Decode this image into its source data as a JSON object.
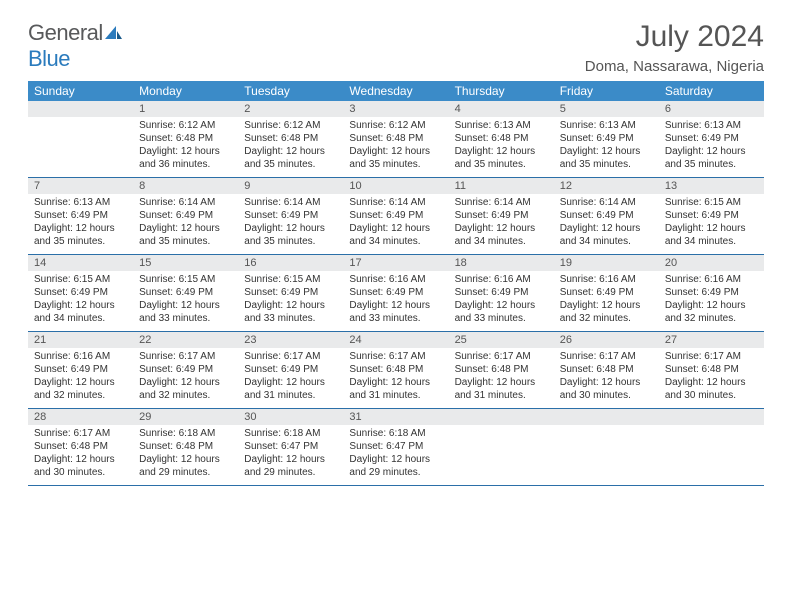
{
  "logo": {
    "text1": "General",
    "text2": "Blue"
  },
  "title": "July 2024",
  "location": "Doma, Nassarawa, Nigeria",
  "header_color": "#3b8bc8",
  "divider_color": "#2b6fa8",
  "daynum_bg": "#e9eaeb",
  "weekdays": [
    "Sunday",
    "Monday",
    "Tuesday",
    "Wednesday",
    "Thursday",
    "Friday",
    "Saturday"
  ],
  "weeks": [
    [
      {
        "num": "",
        "sunrise": "",
        "sunset": "",
        "daylight": ""
      },
      {
        "num": "1",
        "sunrise": "6:12 AM",
        "sunset": "6:48 PM",
        "daylight": "12 hours and 36 minutes."
      },
      {
        "num": "2",
        "sunrise": "6:12 AM",
        "sunset": "6:48 PM",
        "daylight": "12 hours and 35 minutes."
      },
      {
        "num": "3",
        "sunrise": "6:12 AM",
        "sunset": "6:48 PM",
        "daylight": "12 hours and 35 minutes."
      },
      {
        "num": "4",
        "sunrise": "6:13 AM",
        "sunset": "6:48 PM",
        "daylight": "12 hours and 35 minutes."
      },
      {
        "num": "5",
        "sunrise": "6:13 AM",
        "sunset": "6:49 PM",
        "daylight": "12 hours and 35 minutes."
      },
      {
        "num": "6",
        "sunrise": "6:13 AM",
        "sunset": "6:49 PM",
        "daylight": "12 hours and 35 minutes."
      }
    ],
    [
      {
        "num": "7",
        "sunrise": "6:13 AM",
        "sunset": "6:49 PM",
        "daylight": "12 hours and 35 minutes."
      },
      {
        "num": "8",
        "sunrise": "6:14 AM",
        "sunset": "6:49 PM",
        "daylight": "12 hours and 35 minutes."
      },
      {
        "num": "9",
        "sunrise": "6:14 AM",
        "sunset": "6:49 PM",
        "daylight": "12 hours and 35 minutes."
      },
      {
        "num": "10",
        "sunrise": "6:14 AM",
        "sunset": "6:49 PM",
        "daylight": "12 hours and 34 minutes."
      },
      {
        "num": "11",
        "sunrise": "6:14 AM",
        "sunset": "6:49 PM",
        "daylight": "12 hours and 34 minutes."
      },
      {
        "num": "12",
        "sunrise": "6:14 AM",
        "sunset": "6:49 PM",
        "daylight": "12 hours and 34 minutes."
      },
      {
        "num": "13",
        "sunrise": "6:15 AM",
        "sunset": "6:49 PM",
        "daylight": "12 hours and 34 minutes."
      }
    ],
    [
      {
        "num": "14",
        "sunrise": "6:15 AM",
        "sunset": "6:49 PM",
        "daylight": "12 hours and 34 minutes."
      },
      {
        "num": "15",
        "sunrise": "6:15 AM",
        "sunset": "6:49 PM",
        "daylight": "12 hours and 33 minutes."
      },
      {
        "num": "16",
        "sunrise": "6:15 AM",
        "sunset": "6:49 PM",
        "daylight": "12 hours and 33 minutes."
      },
      {
        "num": "17",
        "sunrise": "6:16 AM",
        "sunset": "6:49 PM",
        "daylight": "12 hours and 33 minutes."
      },
      {
        "num": "18",
        "sunrise": "6:16 AM",
        "sunset": "6:49 PM",
        "daylight": "12 hours and 33 minutes."
      },
      {
        "num": "19",
        "sunrise": "6:16 AM",
        "sunset": "6:49 PM",
        "daylight": "12 hours and 32 minutes."
      },
      {
        "num": "20",
        "sunrise": "6:16 AM",
        "sunset": "6:49 PM",
        "daylight": "12 hours and 32 minutes."
      }
    ],
    [
      {
        "num": "21",
        "sunrise": "6:16 AM",
        "sunset": "6:49 PM",
        "daylight": "12 hours and 32 minutes."
      },
      {
        "num": "22",
        "sunrise": "6:17 AM",
        "sunset": "6:49 PM",
        "daylight": "12 hours and 32 minutes."
      },
      {
        "num": "23",
        "sunrise": "6:17 AM",
        "sunset": "6:49 PM",
        "daylight": "12 hours and 31 minutes."
      },
      {
        "num": "24",
        "sunrise": "6:17 AM",
        "sunset": "6:48 PM",
        "daylight": "12 hours and 31 minutes."
      },
      {
        "num": "25",
        "sunrise": "6:17 AM",
        "sunset": "6:48 PM",
        "daylight": "12 hours and 31 minutes."
      },
      {
        "num": "26",
        "sunrise": "6:17 AM",
        "sunset": "6:48 PM",
        "daylight": "12 hours and 30 minutes."
      },
      {
        "num": "27",
        "sunrise": "6:17 AM",
        "sunset": "6:48 PM",
        "daylight": "12 hours and 30 minutes."
      }
    ],
    [
      {
        "num": "28",
        "sunrise": "6:17 AM",
        "sunset": "6:48 PM",
        "daylight": "12 hours and 30 minutes."
      },
      {
        "num": "29",
        "sunrise": "6:18 AM",
        "sunset": "6:48 PM",
        "daylight": "12 hours and 29 minutes."
      },
      {
        "num": "30",
        "sunrise": "6:18 AM",
        "sunset": "6:47 PM",
        "daylight": "12 hours and 29 minutes."
      },
      {
        "num": "31",
        "sunrise": "6:18 AM",
        "sunset": "6:47 PM",
        "daylight": "12 hours and 29 minutes."
      },
      {
        "num": "",
        "sunrise": "",
        "sunset": "",
        "daylight": ""
      },
      {
        "num": "",
        "sunrise": "",
        "sunset": "",
        "daylight": ""
      },
      {
        "num": "",
        "sunrise": "",
        "sunset": "",
        "daylight": ""
      }
    ]
  ],
  "labels": {
    "sunrise": "Sunrise:",
    "sunset": "Sunset:",
    "daylight": "Daylight:"
  }
}
